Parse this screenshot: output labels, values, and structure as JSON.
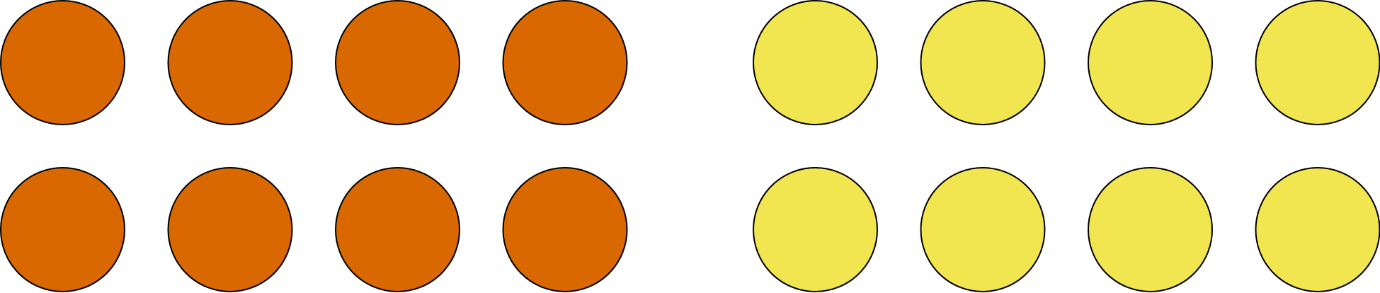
{
  "diagram": {
    "groups": [
      {
        "color": "#D96800",
        "rows": 2,
        "columns": 4
      },
      {
        "color": "#F2E650",
        "rows": 2,
        "columns": 4
      }
    ],
    "stroke_color": "#000000"
  }
}
